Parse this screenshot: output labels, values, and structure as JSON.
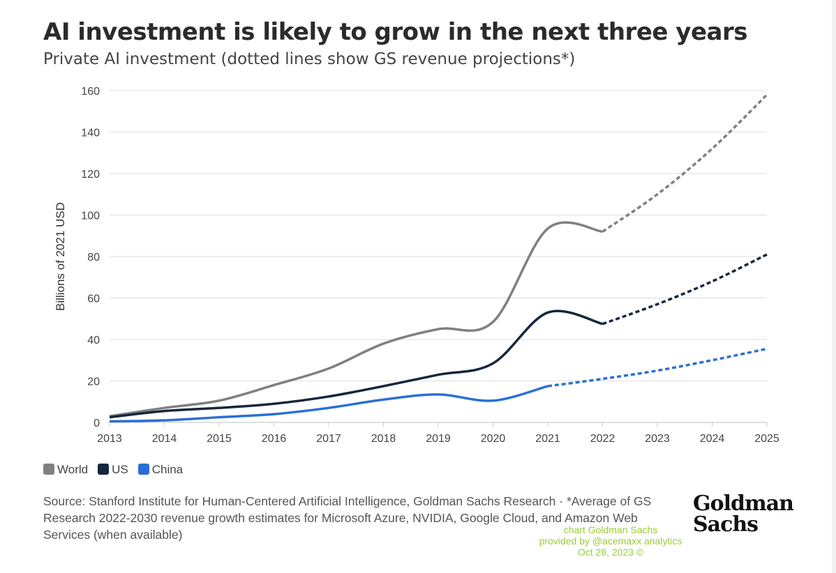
{
  "chart_data": {
    "type": "line",
    "title": "AI investment is likely to grow in the next three years",
    "subtitle": "Private AI investment (dotted lines show GS revenue projections*)",
    "xlabel": "",
    "ylabel": "Billions of 2021 USD",
    "x": [
      2013,
      2014,
      2015,
      2016,
      2017,
      2018,
      2019,
      2020,
      2021,
      2022,
      2023,
      2024,
      2025
    ],
    "ylim": [
      0,
      160
    ],
    "yticks": [
      0,
      20,
      40,
      60,
      80,
      100,
      120,
      140,
      160
    ],
    "grid": true,
    "legend_position": "bottom-left",
    "series": [
      {
        "name": "World",
        "color": "#808080",
        "values": [
          3,
          7,
          10.5,
          18,
          26,
          38,
          45,
          48.5,
          93.5,
          92,
          110,
          132,
          158
        ],
        "projected_from": 2022
      },
      {
        "name": "US",
        "color": "#16263d",
        "values": [
          2.5,
          5.5,
          7,
          9,
          12.5,
          17.5,
          23,
          28.5,
          53,
          47.5,
          57,
          68,
          81
        ],
        "projected_from": 2022
      },
      {
        "name": "China",
        "color": "#2a6fd6",
        "values": [
          0.5,
          1,
          2.5,
          4,
          7,
          11,
          13.5,
          10.5,
          17.5,
          21,
          25,
          30,
          35.5
        ],
        "projected_from": 2021
      }
    ]
  },
  "source": "Source: Stanford Institute for Human-Centered Artificial Intelligence, Goldman Sachs Research · *Average of GS Research 2022-2030 revenue growth estimates for Microsoft Azure, NVIDIA, Google Cloud, and Amazon Web Services (when available)",
  "logo": "Goldman Sachs",
  "watermark": [
    "chart Goldman Sachs",
    "provided by @acemaxx analytics",
    "Oct 28, 2023 ©"
  ]
}
